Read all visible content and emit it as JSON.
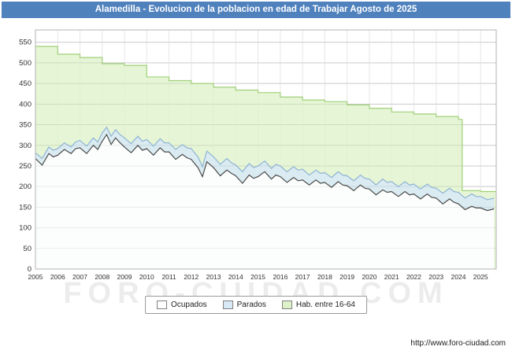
{
  "title": "Alamedilla - Evolucion de la poblacion en edad de Trabajar Agosto de 2025",
  "watermark": "FORO-CIUDAD.COM",
  "footer": {
    "url": "http://www.foro-ciudad.com"
  },
  "colors": {
    "title_bar": "#4f81bd",
    "grid": "#d9d9d9",
    "plot_border": "#b3b3b3",
    "tick_text": "#333333"
  },
  "legend": [
    {
      "label": "Ocupados",
      "color": "#ffffff"
    },
    {
      "label": "Parados",
      "color": "#d8e9f7"
    },
    {
      "label": "Hab. entre 16-64",
      "color": "#def2ca"
    }
  ],
  "chart_data": {
    "type": "area",
    "title": "Alamedilla - Evolucion de la poblacion en edad de Trabajar Agosto de 2025",
    "xlabel": "",
    "ylabel": "",
    "x_range": [
      2005,
      2025.7
    ],
    "ylim": [
      0,
      580
    ],
    "yticks": [
      0,
      50,
      100,
      150,
      200,
      250,
      300,
      350,
      400,
      450,
      500,
      550
    ],
    "xticks": [
      2005,
      2006,
      2007,
      2008,
      2009,
      2010,
      2011,
      2012,
      2013,
      2014,
      2015,
      2016,
      2017,
      2018,
      2019,
      2020,
      2021,
      2022,
      2023,
      2024,
      2025
    ],
    "grid": true,
    "legend_position": "bottom",
    "series": [
      {
        "name": "Hab. entre 16-64",
        "mode": "step",
        "values_are": "absolute",
        "fill": "#def2ca",
        "stroke": "#a0d078",
        "fill_opacity": 0.8,
        "points": [
          [
            2005,
            540
          ],
          [
            2006,
            521
          ],
          [
            2007,
            513
          ],
          [
            2008,
            498
          ],
          [
            2009,
            494
          ],
          [
            2010,
            466
          ],
          [
            2011,
            457
          ],
          [
            2012,
            450
          ],
          [
            2013,
            441
          ],
          [
            2014,
            434
          ],
          [
            2015,
            428
          ],
          [
            2016,
            417
          ],
          [
            2017,
            410
          ],
          [
            2018,
            406
          ],
          [
            2019,
            398
          ],
          [
            2020,
            390
          ],
          [
            2021,
            381
          ],
          [
            2022,
            376
          ],
          [
            2023,
            370
          ],
          [
            2024,
            363
          ],
          [
            2024.17,
            190
          ],
          [
            2025,
            188
          ],
          [
            2025.7,
            186
          ]
        ]
      },
      {
        "name": "Parados",
        "mode": "line",
        "values_are": "cumulative_top_ocupados_plus_parados",
        "fill": "#d8e9f7",
        "stroke": "#8fb4d4",
        "fill_opacity": 0.85,
        "points": [
          [
            2005.0,
            282
          ],
          [
            2005.3,
            268
          ],
          [
            2005.6,
            296
          ],
          [
            2005.8,
            288
          ],
          [
            2006.0,
            292
          ],
          [
            2006.3,
            306
          ],
          [
            2006.6,
            296
          ],
          [
            2006.8,
            308
          ],
          [
            2007.0,
            312
          ],
          [
            2007.3,
            298
          ],
          [
            2007.6,
            318
          ],
          [
            2007.8,
            308
          ],
          [
            2008.0,
            330
          ],
          [
            2008.2,
            344
          ],
          [
            2008.4,
            322
          ],
          [
            2008.6,
            338
          ],
          [
            2008.8,
            326
          ],
          [
            2009.0,
            318
          ],
          [
            2009.3,
            304
          ],
          [
            2009.6,
            322
          ],
          [
            2009.8,
            310
          ],
          [
            2010.0,
            314
          ],
          [
            2010.3,
            298
          ],
          [
            2010.6,
            316
          ],
          [
            2010.8,
            306
          ],
          [
            2011.0,
            306
          ],
          [
            2011.3,
            290
          ],
          [
            2011.6,
            302
          ],
          [
            2011.8,
            294
          ],
          [
            2012.0,
            292
          ],
          [
            2012.3,
            272
          ],
          [
            2012.5,
            248
          ],
          [
            2012.7,
            286
          ],
          [
            2013.0,
            272
          ],
          [
            2013.3,
            254
          ],
          [
            2013.6,
            268
          ],
          [
            2013.8,
            258
          ],
          [
            2014.0,
            252
          ],
          [
            2014.3,
            236
          ],
          [
            2014.6,
            256
          ],
          [
            2014.8,
            246
          ],
          [
            2015.0,
            250
          ],
          [
            2015.3,
            262
          ],
          [
            2015.6,
            244
          ],
          [
            2015.8,
            254
          ],
          [
            2016.0,
            250
          ],
          [
            2016.3,
            236
          ],
          [
            2016.6,
            248
          ],
          [
            2016.8,
            240
          ],
          [
            2017.0,
            242
          ],
          [
            2017.3,
            228
          ],
          [
            2017.6,
            240
          ],
          [
            2017.8,
            232
          ],
          [
            2018.0,
            234
          ],
          [
            2018.3,
            222
          ],
          [
            2018.6,
            236
          ],
          [
            2018.8,
            228
          ],
          [
            2019.0,
            226
          ],
          [
            2019.3,
            214
          ],
          [
            2019.6,
            228
          ],
          [
            2019.8,
            220
          ],
          [
            2020.0,
            218
          ],
          [
            2020.3,
            204
          ],
          [
            2020.6,
            218
          ],
          [
            2020.8,
            210
          ],
          [
            2021.0,
            212
          ],
          [
            2021.3,
            200
          ],
          [
            2021.6,
            212
          ],
          [
            2021.8,
            204
          ],
          [
            2022.0,
            206
          ],
          [
            2022.3,
            194
          ],
          [
            2022.6,
            206
          ],
          [
            2022.8,
            198
          ],
          [
            2023.0,
            196
          ],
          [
            2023.3,
            184
          ],
          [
            2023.6,
            196
          ],
          [
            2023.8,
            188
          ],
          [
            2024.0,
            186
          ],
          [
            2024.3,
            172
          ],
          [
            2024.6,
            182
          ],
          [
            2024.8,
            176
          ],
          [
            2025.0,
            176
          ],
          [
            2025.3,
            168
          ],
          [
            2025.6,
            172
          ]
        ]
      },
      {
        "name": "Ocupados",
        "mode": "line",
        "values_are": "absolute",
        "fill": "#ffffff",
        "stroke": "#4a4a4a",
        "fill_opacity": 0.92,
        "points": [
          [
            2005.0,
            268
          ],
          [
            2005.3,
            252
          ],
          [
            2005.6,
            280
          ],
          [
            2005.8,
            272
          ],
          [
            2006.0,
            276
          ],
          [
            2006.3,
            290
          ],
          [
            2006.6,
            280
          ],
          [
            2006.8,
            292
          ],
          [
            2007.0,
            294
          ],
          [
            2007.3,
            280
          ],
          [
            2007.6,
            300
          ],
          [
            2007.8,
            290
          ],
          [
            2008.0,
            310
          ],
          [
            2008.2,
            326
          ],
          [
            2008.4,
            302
          ],
          [
            2008.6,
            318
          ],
          [
            2008.8,
            306
          ],
          [
            2009.0,
            296
          ],
          [
            2009.3,
            282
          ],
          [
            2009.6,
            300
          ],
          [
            2009.8,
            288
          ],
          [
            2010.0,
            292
          ],
          [
            2010.3,
            276
          ],
          [
            2010.6,
            294
          ],
          [
            2010.8,
            284
          ],
          [
            2011.0,
            284
          ],
          [
            2011.3,
            266
          ],
          [
            2011.6,
            278
          ],
          [
            2011.8,
            270
          ],
          [
            2012.0,
            266
          ],
          [
            2012.3,
            246
          ],
          [
            2012.5,
            224
          ],
          [
            2012.7,
            260
          ],
          [
            2013.0,
            246
          ],
          [
            2013.3,
            226
          ],
          [
            2013.6,
            240
          ],
          [
            2013.8,
            232
          ],
          [
            2014.0,
            226
          ],
          [
            2014.3,
            208
          ],
          [
            2014.6,
            228
          ],
          [
            2014.8,
            220
          ],
          [
            2015.0,
            224
          ],
          [
            2015.3,
            236
          ],
          [
            2015.6,
            218
          ],
          [
            2015.8,
            228
          ],
          [
            2016.0,
            224
          ],
          [
            2016.3,
            210
          ],
          [
            2016.6,
            222
          ],
          [
            2016.8,
            214
          ],
          [
            2017.0,
            216
          ],
          [
            2017.3,
            204
          ],
          [
            2017.6,
            216
          ],
          [
            2017.8,
            208
          ],
          [
            2018.0,
            210
          ],
          [
            2018.3,
            198
          ],
          [
            2018.6,
            212
          ],
          [
            2018.8,
            204
          ],
          [
            2019.0,
            202
          ],
          [
            2019.3,
            190
          ],
          [
            2019.6,
            204
          ],
          [
            2019.8,
            196
          ],
          [
            2020.0,
            194
          ],
          [
            2020.3,
            180
          ],
          [
            2020.6,
            192
          ],
          [
            2020.8,
            186
          ],
          [
            2021.0,
            188
          ],
          [
            2021.3,
            176
          ],
          [
            2021.6,
            188
          ],
          [
            2021.8,
            180
          ],
          [
            2022.0,
            182
          ],
          [
            2022.3,
            170
          ],
          [
            2022.6,
            182
          ],
          [
            2022.8,
            174
          ],
          [
            2023.0,
            172
          ],
          [
            2023.3,
            158
          ],
          [
            2023.6,
            170
          ],
          [
            2023.8,
            162
          ],
          [
            2024.0,
            158
          ],
          [
            2024.3,
            144
          ],
          [
            2024.6,
            152
          ],
          [
            2024.8,
            148
          ],
          [
            2025.0,
            148
          ],
          [
            2025.3,
            142
          ],
          [
            2025.6,
            146
          ]
        ]
      }
    ]
  }
}
